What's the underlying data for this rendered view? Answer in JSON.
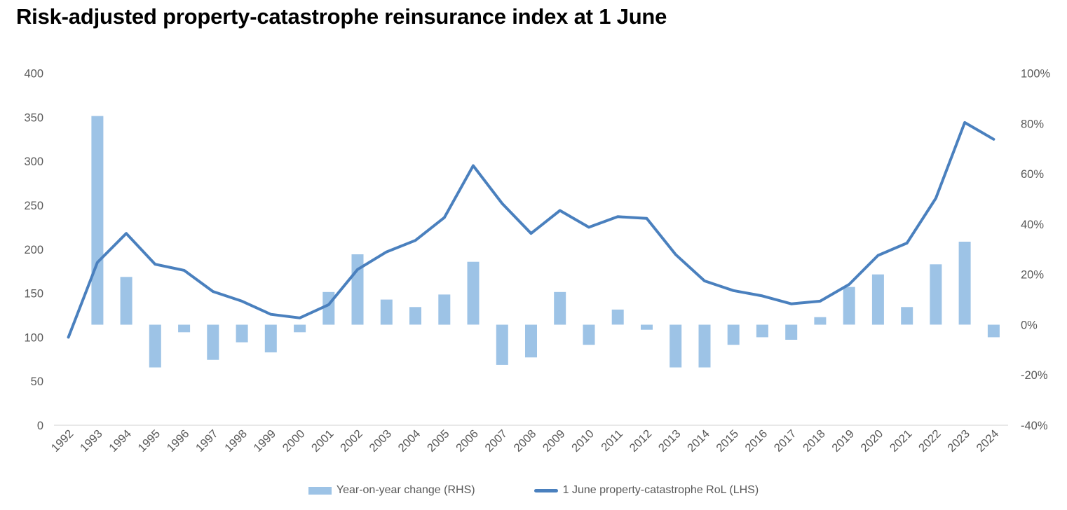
{
  "title": "Risk-adjusted property-catastrophe reinsurance index at 1 June",
  "legend": {
    "bar_label": "Year-on-year change (RHS)",
    "line_label": "1 June property-catastrophe RoL (LHS)"
  },
  "colors": {
    "bar": "#9DC3E6",
    "line": "#4A80BE",
    "axis_text": "#595959",
    "axis_line": "#D9D9D9",
    "title_text": "#000000"
  },
  "chart_data": {
    "type": "combo",
    "categories": [
      "1992",
      "1993",
      "1994",
      "1995",
      "1996",
      "1997",
      "1998",
      "1999",
      "2000",
      "2001",
      "2002",
      "2003",
      "2004",
      "2005",
      "2006",
      "2007",
      "2008",
      "2009",
      "2010",
      "2011",
      "2012",
      "2013",
      "2014",
      "2015",
      "2016",
      "2017",
      "2018",
      "2019",
      "2020",
      "2021",
      "2022",
      "2023",
      "2024"
    ],
    "series": [
      {
        "name": "Year-on-year change (RHS)",
        "type": "bar",
        "axis": "right",
        "unit": "%",
        "values": [
          null,
          83,
          19,
          -17,
          -3,
          -14,
          -7,
          -11,
          -3,
          13,
          28,
          10,
          7,
          12,
          25,
          -16,
          -13,
          13,
          -8,
          6,
          -2,
          -17,
          -17,
          -8,
          -5,
          -6,
          3,
          15,
          20,
          7,
          24,
          33,
          -5
        ]
      },
      {
        "name": "1 June property-catastrophe RoL (LHS)",
        "type": "line",
        "axis": "left",
        "unit": "index",
        "values": [
          100,
          185,
          218,
          183,
          176,
          152,
          141,
          126,
          122,
          137,
          177,
          197,
          210,
          236,
          295,
          252,
          218,
          244,
          225,
          237,
          235,
          194,
          164,
          153,
          147,
          138,
          141,
          160,
          193,
          207,
          258,
          344,
          325
        ]
      }
    ],
    "left_axis": {
      "min": 0,
      "max": 400,
      "tick_labels": [
        "0",
        "50",
        "100",
        "150",
        "200",
        "250",
        "300",
        "350",
        "400"
      ]
    },
    "right_axis": {
      "min": -40,
      "max": 100,
      "tick_labels": [
        "-40%",
        "-20%",
        "0%",
        "20%",
        "40%",
        "60%",
        "80%",
        "100%"
      ]
    },
    "grid": "off",
    "legend_position": "bottom",
    "x_tick_rotation_deg": 45
  }
}
